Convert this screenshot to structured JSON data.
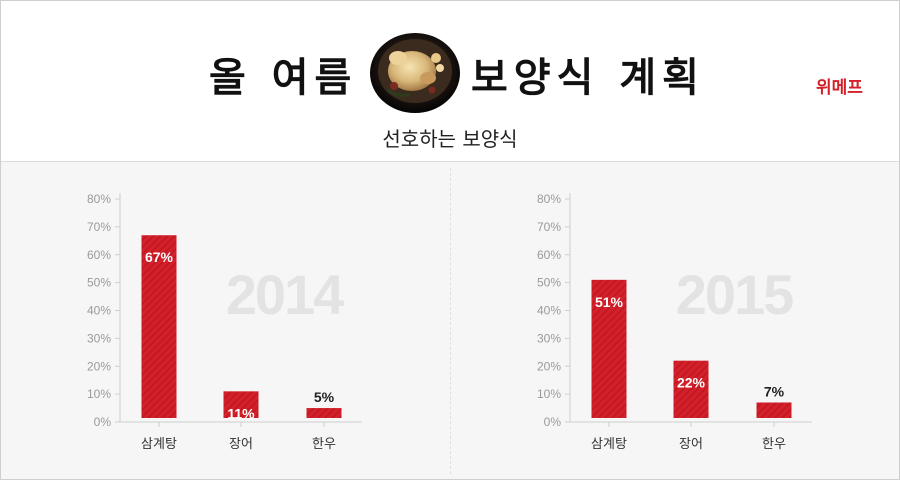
{
  "header": {
    "title_left": "올 여름",
    "title_right": "보양식 계획",
    "brand": "위메프",
    "subtitle": "선호하는 보양식",
    "image_icon": "samgyetang-bowl-icon"
  },
  "colors": {
    "bar": "#d4202a",
    "year_watermark": "#e3e3e3",
    "brand": "#d4202a"
  },
  "chart_data": [
    {
      "type": "bar",
      "title": "",
      "watermark": "2014",
      "categories": [
        "삼계탕",
        "장어",
        "한우"
      ],
      "values": [
        67,
        11,
        5
      ],
      "data_labels": [
        "67%",
        "11%",
        "5%"
      ],
      "y_ticks": [
        "0%",
        "10%",
        "20%",
        "30%",
        "40%",
        "50%",
        "60%",
        "70%",
        "80%"
      ],
      "ylim": [
        0,
        80
      ],
      "grid": false
    },
    {
      "type": "bar",
      "title": "",
      "watermark": "2015",
      "categories": [
        "삼계탕",
        "장어",
        "한우"
      ],
      "values": [
        51,
        22,
        7
      ],
      "data_labels": [
        "51%",
        "22%",
        "7%"
      ],
      "y_ticks": [
        "0%",
        "10%",
        "20%",
        "30%",
        "40%",
        "50%",
        "60%",
        "70%",
        "80%"
      ],
      "ylim": [
        0,
        80
      ],
      "grid": false
    }
  ]
}
